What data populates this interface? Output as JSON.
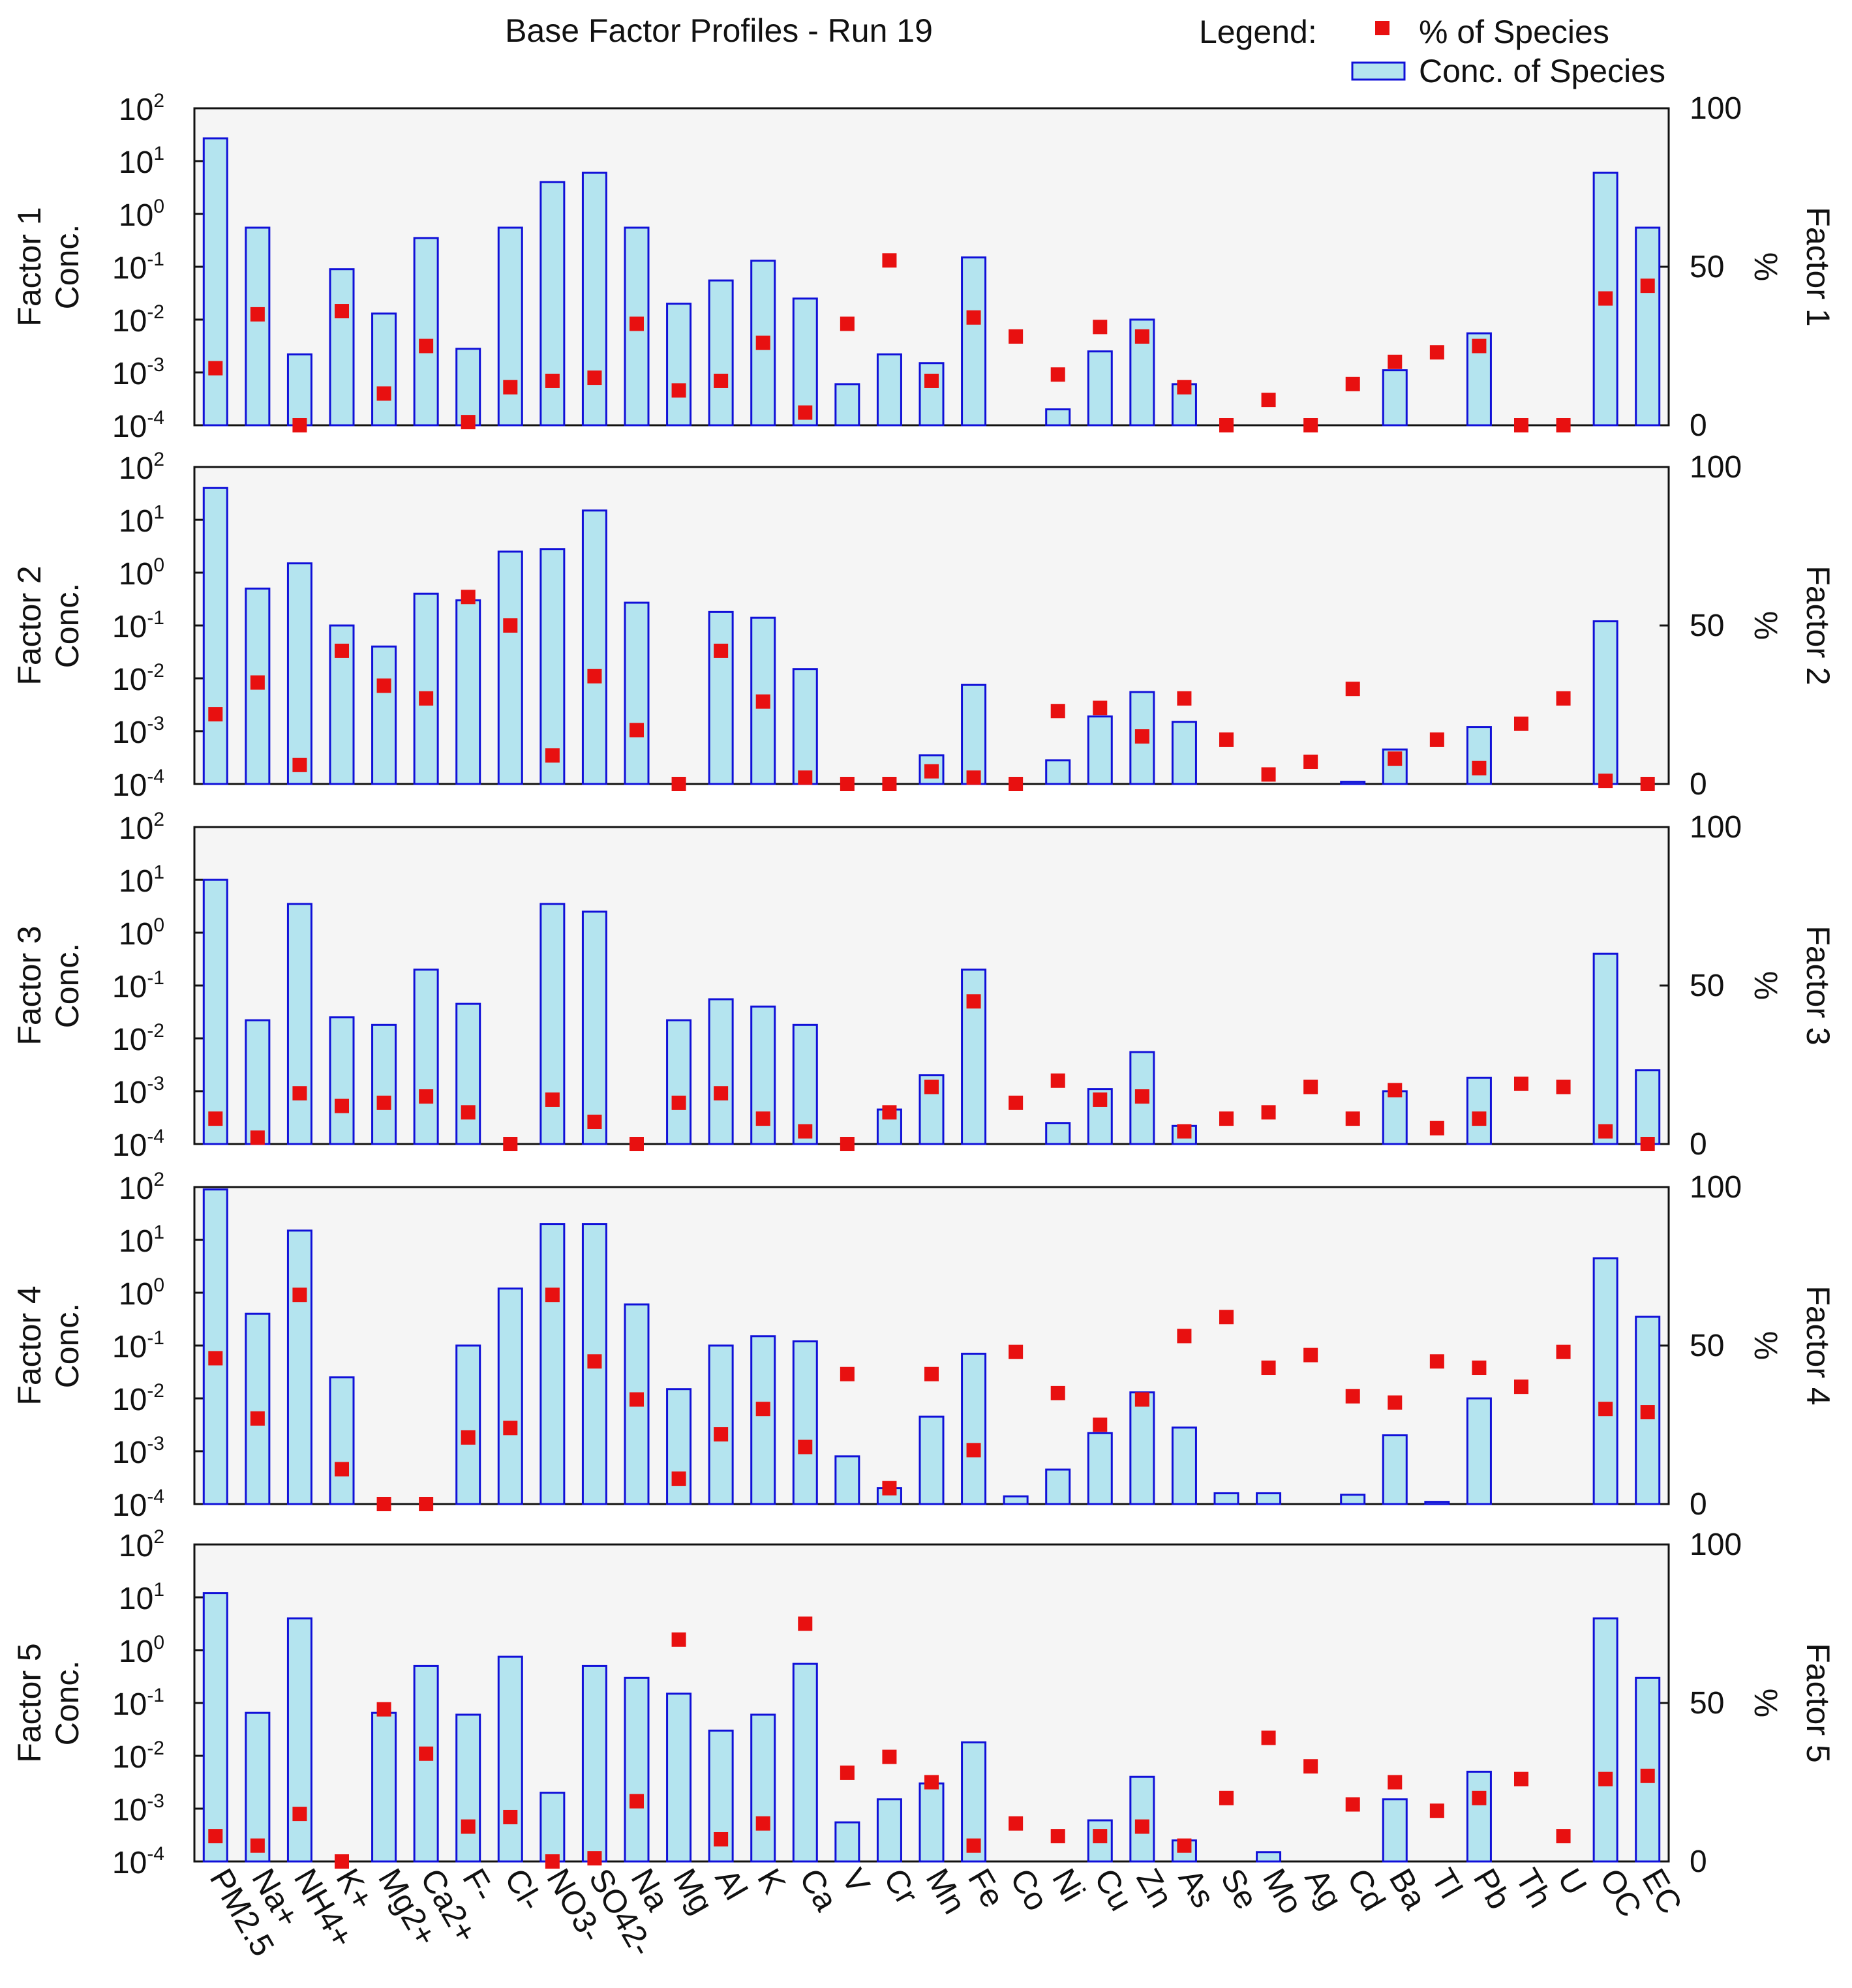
{
  "title": "Base Factor Profiles - Run 19",
  "legend": {
    "label": "Legend:",
    "pct_label": "% of Species",
    "conc_label": "Conc. of Species"
  },
  "colors": {
    "bar_fill": "#b4e4ef",
    "bar_stroke": "#1010d8",
    "point": "#e81010",
    "plot_bg": "#f5f5f5"
  },
  "chart_data": {
    "type": "bar",
    "categories": [
      "PM2.5",
      "Na+",
      "NH4+",
      "K+",
      "Mg2+",
      "Ca2+",
      "F-",
      "Cl-",
      "NO3-",
      "SO42-",
      "Na",
      "Mg",
      "Al",
      "K",
      "Ca",
      "V",
      "Cr",
      "Mn",
      "Fe",
      "Co",
      "Ni",
      "Cu",
      "Zn",
      "As",
      "Se",
      "Mo",
      "Ag",
      "Cd",
      "Ba",
      "Tl",
      "Pb",
      "Th",
      "U",
      "OC",
      "EC"
    ],
    "left_axis": {
      "label": "Conc.",
      "scale": "log",
      "ylim": [
        0.0001,
        100
      ],
      "ticks": [
        "-4",
        "-3",
        "-2",
        "-1",
        "0",
        "1",
        "2"
      ],
      "tick_base": "10"
    },
    "right_axis": {
      "label": "%",
      "ylim": [
        0,
        100
      ],
      "ticks": [
        "0",
        "50",
        "100"
      ]
    },
    "factors": [
      {
        "name": "Factor 1",
        "conc": [
          27,
          0.55,
          0.0022,
          0.09,
          0.013,
          0.35,
          0.0028,
          0.55,
          4,
          6,
          0.55,
          0.02,
          0.055,
          0.13,
          0.025,
          0.0006,
          0.0022,
          0.0015,
          0.15,
          null,
          0.0002,
          0.0025,
          0.01,
          0.0006,
          null,
          null,
          null,
          null,
          0.0011,
          null,
          0.0055,
          null,
          null,
          6,
          0.55
        ],
        "pct": [
          18,
          35,
          0,
          36,
          10,
          25,
          1,
          12,
          14,
          15,
          32,
          11,
          14,
          26,
          4,
          32,
          52,
          14,
          34,
          28,
          16,
          31,
          28,
          12,
          0,
          8,
          0,
          13,
          20,
          23,
          25,
          0,
          0,
          40,
          44
        ]
      },
      {
        "name": "Factor 2",
        "conc": [
          40,
          0.5,
          1.5,
          0.1,
          0.04,
          0.4,
          0.3,
          2.5,
          2.8,
          15,
          0.27,
          null,
          0.18,
          0.14,
          0.015,
          null,
          null,
          0.00035,
          0.0075,
          null,
          0.00028,
          0.0019,
          0.0055,
          0.0015,
          null,
          null,
          null,
          0.00011,
          0.00045,
          null,
          0.0012,
          null,
          null,
          0.12,
          null
        ],
        "pct": [
          22,
          32,
          6,
          42,
          31,
          27,
          59,
          50,
          9,
          34,
          17,
          0,
          42,
          26,
          2,
          0,
          0,
          4,
          2,
          0,
          23,
          24,
          15,
          27,
          14,
          3,
          7,
          30,
          8,
          14,
          5,
          19,
          27,
          1,
          0
        ]
      },
      {
        "name": "Factor 3",
        "conc": [
          10,
          0.022,
          3.5,
          0.025,
          0.018,
          0.2,
          0.045,
          null,
          3.5,
          2.5,
          null,
          0.022,
          0.055,
          0.04,
          0.018,
          null,
          0.00045,
          0.002,
          0.2,
          null,
          0.00025,
          0.0011,
          0.0055,
          0.00022,
          null,
          null,
          null,
          null,
          0.001,
          null,
          0.0018,
          null,
          null,
          0.4,
          0.0025
        ],
        "pct": [
          8,
          2,
          16,
          12,
          13,
          15,
          10,
          0,
          14,
          7,
          0,
          13,
          16,
          8,
          4,
          0,
          10,
          18,
          45,
          13,
          20,
          14,
          15,
          4,
          8,
          10,
          18,
          8,
          17,
          5,
          8,
          19,
          18,
          4,
          0
        ]
      },
      {
        "name": "Factor 4",
        "conc": [
          90,
          0.4,
          15,
          0.025,
          null,
          null,
          0.1,
          1.2,
          20,
          20,
          0.6,
          0.015,
          0.1,
          0.15,
          0.12,
          0.0008,
          0.0002,
          0.0045,
          0.07,
          0.00014,
          0.00045,
          0.0022,
          0.013,
          0.0028,
          0.00016,
          0.00016,
          null,
          0.00015,
          0.002,
          0.00011,
          0.01,
          null,
          null,
          4.5,
          0.35
        ],
        "pct": [
          46,
          27,
          66,
          11,
          0,
          0,
          21,
          24,
          66,
          45,
          33,
          8,
          22,
          30,
          18,
          41,
          5,
          41,
          17,
          48,
          35,
          25,
          33,
          53,
          59,
          43,
          47,
          34,
          32,
          45,
          43,
          37,
          48,
          30,
          29
        ]
      },
      {
        "name": "Factor 5",
        "conc": [
          12,
          0.065,
          4,
          null,
          0.065,
          0.5,
          0.06,
          0.75,
          0.002,
          0.5,
          0.3,
          0.15,
          0.03,
          0.06,
          0.55,
          0.00055,
          0.0015,
          0.003,
          0.018,
          null,
          null,
          0.0006,
          0.004,
          0.00025,
          null,
          0.00015,
          null,
          null,
          0.0015,
          null,
          0.005,
          null,
          null,
          4,
          0.3
        ],
        "pct": [
          8,
          5,
          15,
          0,
          48,
          34,
          11,
          14,
          0,
          1,
          19,
          70,
          7,
          12,
          75,
          28,
          33,
          25,
          5,
          12,
          8,
          8,
          11,
          5,
          20,
          39,
          30,
          18,
          25,
          16,
          20,
          26,
          8,
          26,
          27
        ]
      }
    ]
  }
}
